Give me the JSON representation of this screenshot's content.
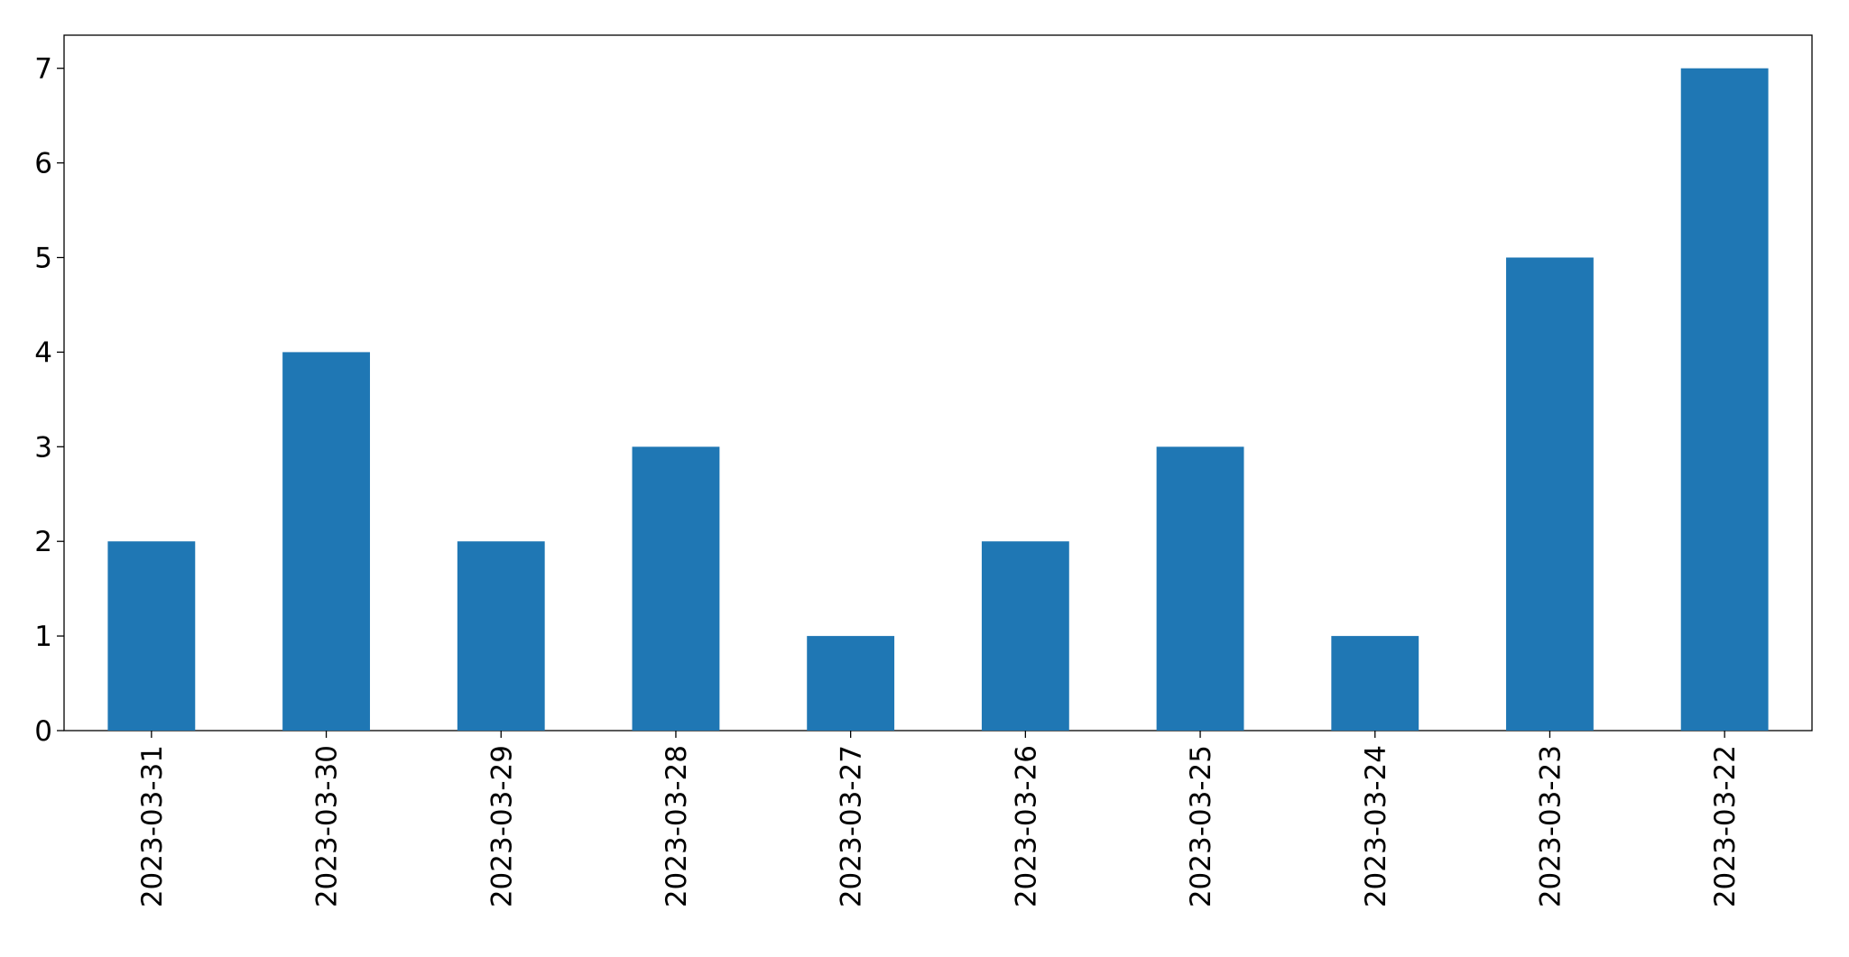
{
  "chart_data": {
    "type": "bar",
    "categories": [
      "2023-03-31",
      "2023-03-30",
      "2023-03-29",
      "2023-03-28",
      "2023-03-27",
      "2023-03-26",
      "2023-03-25",
      "2023-03-24",
      "2023-03-23",
      "2023-03-22"
    ],
    "values": [
      2,
      4,
      2,
      3,
      1,
      2,
      3,
      1,
      5,
      7
    ],
    "color": "#1f77b4",
    "ylim": [
      0,
      7.35
    ],
    "yticks": [
      0,
      1,
      2,
      3,
      4,
      5,
      6,
      7
    ],
    "grid": false
  }
}
